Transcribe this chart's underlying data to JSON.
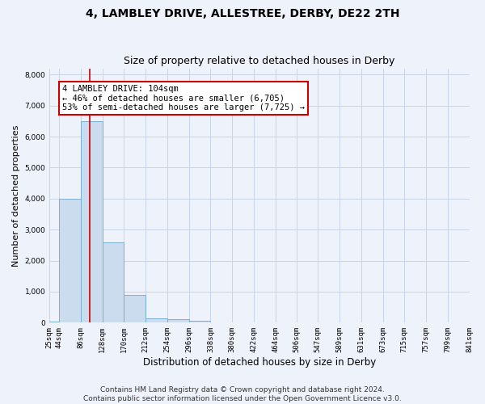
{
  "title1": "4, LAMBLEY DRIVE, ALLESTREE, DERBY, DE22 2TH",
  "title2": "Size of property relative to detached houses in Derby",
  "xlabel": "Distribution of detached houses by size in Derby",
  "ylabel": "Number of detached properties",
  "footer": "Contains HM Land Registry data © Crown copyright and database right 2024.\nContains public sector information licensed under the Open Government Licence v3.0.",
  "bar_edges": [
    25,
    44,
    86,
    128,
    170,
    212,
    254,
    296,
    338,
    380,
    422,
    464,
    506,
    547,
    589,
    631,
    673,
    715,
    757,
    799,
    841
  ],
  "bar_heights": [
    30,
    4000,
    6500,
    2600,
    900,
    150,
    100,
    50,
    10,
    0,
    0,
    0,
    0,
    0,
    0,
    0,
    0,
    0,
    0,
    0
  ],
  "bar_color": "#ccdcef",
  "bar_edge_color": "#7bafd4",
  "grid_color": "#c8d4e8",
  "background_color": "#eef2fa",
  "annotation_text": "4 LAMBLEY DRIVE: 104sqm\n← 46% of detached houses are smaller (6,705)\n53% of semi-detached houses are larger (7,725) →",
  "annotation_box_color": "#ffffff",
  "annotation_box_edge": "#cc0000",
  "vline_x": 104,
  "vline_color": "#cc0000",
  "tick_labels": [
    "25sqm",
    "44sqm",
    "86sqm",
    "128sqm",
    "170sqm",
    "212sqm",
    "254sqm",
    "296sqm",
    "338sqm",
    "380sqm",
    "422sqm",
    "464sqm",
    "506sqm",
    "547sqm",
    "589sqm",
    "631sqm",
    "673sqm",
    "715sqm",
    "757sqm",
    "799sqm",
    "841sqm"
  ],
  "ylim": [
    0,
    8200
  ],
  "yticks": [
    0,
    1000,
    2000,
    3000,
    4000,
    5000,
    6000,
    7000,
    8000
  ]
}
